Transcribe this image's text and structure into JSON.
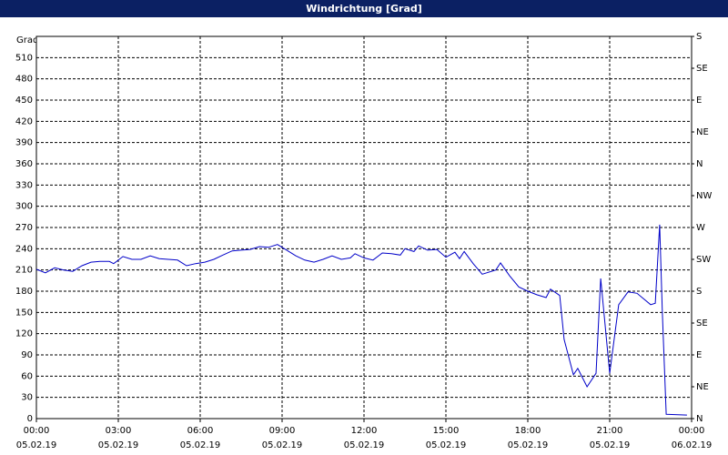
{
  "chart_data": {
    "type": "line",
    "title": "Windrichtung [Grad]",
    "ylabel": "Grad",
    "x": [
      0,
      0.33,
      0.67,
      1,
      1.33,
      1.67,
      2,
      2.33,
      2.67,
      2.83,
      3.17,
      3.5,
      3.83,
      4.17,
      4.5,
      4.83,
      5.17,
      5.5,
      5.83,
      6.17,
      6.5,
      6.83,
      7.17,
      7.5,
      7.83,
      8.17,
      8.5,
      8.83,
      9.17,
      9.5,
      9.83,
      10.17,
      10.5,
      10.83,
      11.17,
      11.5,
      11.67,
      12,
      12.33,
      12.67,
      13,
      13.33,
      13.5,
      13.83,
      14,
      14.33,
      14.67,
      15,
      15.33,
      15.5,
      15.67,
      16,
      16.33,
      16.83,
      17,
      17.33,
      17.67,
      18,
      18.33,
      18.67,
      18.83,
      19.17,
      19.33,
      19.67,
      19.83,
      20.17,
      20.5,
      20.67,
      21,
      21.33,
      21.67,
      22,
      22.5,
      22.67,
      22.83,
      22.93,
      23.07,
      23.83
    ],
    "series": [
      {
        "name": "Windrichtung",
        "color": "#0000c8",
        "values": [
          211,
          206,
          213,
          210,
          208,
          216,
          221,
          222,
          222,
          219,
          229,
          225,
          225,
          230,
          226,
          225,
          224,
          216,
          219,
          221,
          225,
          231,
          237,
          238,
          239,
          243,
          242,
          246,
          238,
          230,
          224,
          221,
          225,
          230,
          225,
          227,
          233,
          227,
          224,
          234,
          233,
          231,
          240,
          236,
          244,
          238,
          239,
          228,
          235,
          226,
          236,
          219,
          204,
          210,
          220,
          202,
          186,
          180,
          175,
          171,
          183,
          174,
          112,
          62,
          71,
          45,
          64,
          198,
          64,
          161,
          179,
          177,
          161,
          163,
          274,
          148,
          6,
          5
        ]
      }
    ],
    "xlim": [
      0,
      24
    ],
    "xticks": [
      {
        "value": 0,
        "label": "00:00"
      },
      {
        "value": 3,
        "label": "03:00"
      },
      {
        "value": 6,
        "label": "06:00"
      },
      {
        "value": 9,
        "label": "09:00"
      },
      {
        "value": 12,
        "label": "12:00"
      },
      {
        "value": 15,
        "label": "15:00"
      },
      {
        "value": 18,
        "label": "18:00"
      },
      {
        "value": 21,
        "label": "21:00"
      },
      {
        "value": 24,
        "label": "00:00"
      }
    ],
    "xtick_dates": [
      "05.02.19",
      "05.02.19",
      "05.02.19",
      "05.02.19",
      "05.02.19",
      "05.02.19",
      "05.02.19",
      "05.02.19",
      "06.02.19"
    ],
    "ylim": [
      0,
      540
    ],
    "yticks": [
      0,
      30,
      60,
      90,
      120,
      150,
      180,
      210,
      240,
      270,
      300,
      330,
      360,
      390,
      420,
      450,
      480,
      510
    ],
    "y2lim": [
      0,
      540
    ],
    "y2ticks": [
      {
        "value": 0,
        "label": "N"
      },
      {
        "value": 45,
        "label": "NE"
      },
      {
        "value": 90,
        "label": "E"
      },
      {
        "value": 135,
        "label": "SE"
      },
      {
        "value": 180,
        "label": "S"
      },
      {
        "value": 225,
        "label": "SW"
      },
      {
        "value": 270,
        "label": "W"
      },
      {
        "value": 315,
        "label": "NW"
      },
      {
        "value": 360,
        "label": "N"
      },
      {
        "value": 405,
        "label": "NE"
      },
      {
        "value": 450,
        "label": "E"
      },
      {
        "value": 495,
        "label": "SE"
      },
      {
        "value": 540,
        "label": "S"
      }
    ],
    "grid": true
  }
}
